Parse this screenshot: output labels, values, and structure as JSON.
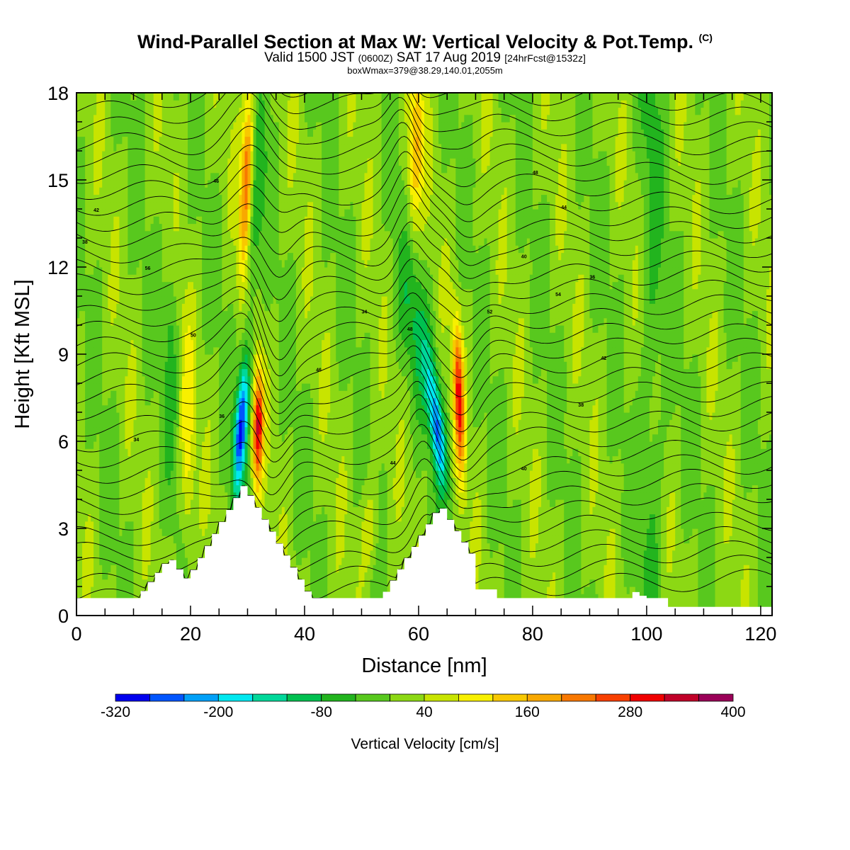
{
  "title": "Wind-Parallel Section at Max W: Vertical Velocity & Pot.Temp.",
  "title_mark": "(C)",
  "subtitle_pre": "Valid 1500 JST",
  "subtitle_utc": "(0600Z)",
  "subtitle_date": "SAT 17 Aug 2019",
  "subtitle_fcst": "[24hrFcst@1532z]",
  "subtitle2": "boxWmax=379@38.29,140.01,2055m",
  "chart_data": {
    "type": "heatmap",
    "xlabel": "Distance [nm]",
    "ylabel": "Height [Kft MSL]",
    "xlim": [
      0,
      122
    ],
    "ylim": [
      0,
      18
    ],
    "x_ticks": [
      "0",
      "20",
      "40",
      "60",
      "80",
      "100",
      "120"
    ],
    "y_ticks": [
      "0",
      "3",
      "6",
      "9",
      "12",
      "15",
      "18"
    ],
    "x_tick_values": [
      0,
      20,
      40,
      60,
      80,
      100,
      120
    ],
    "y_tick_values": [
      0,
      3,
      6,
      9,
      12,
      15,
      18
    ],
    "colorbar": {
      "title": "Vertical Velocity [cm/s]",
      "levels": [
        -320,
        -280,
        -240,
        -200,
        -160,
        -120,
        -80,
        -40,
        0,
        40,
        80,
        120,
        160,
        200,
        240,
        280,
        320,
        360,
        400
      ],
      "labels": [
        "-320",
        "-200",
        "-80",
        "40",
        "160",
        "280",
        "400"
      ],
      "colors": [
        "#0000ee",
        "#0055ff",
        "#00a0f8",
        "#00e8f0",
        "#00d89a",
        "#00c050",
        "#22b41e",
        "#58c81e",
        "#8cd814",
        "#c8e400",
        "#f8f000",
        "#f8c800",
        "#f8a800",
        "#f87800",
        "#f84000",
        "#f00000",
        "#c00028",
        "#9a0058"
      ]
    },
    "terrain_ridges_nm_kft": [
      {
        "x": 29.5,
        "peak_kft": 4.5
      },
      {
        "x": 64,
        "peak_kft": 3.8
      },
      {
        "x": 98,
        "peak_kft": 0.9
      }
    ],
    "updraft_max_cm_s": 379,
    "potential_temperature_contours_c": [
      "34",
      "36",
      "38",
      "40",
      "42",
      "44",
      "46",
      "48",
      "50",
      "52",
      "54",
      "56"
    ]
  }
}
